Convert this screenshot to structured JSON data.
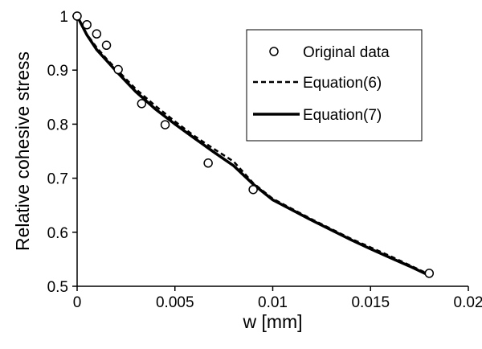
{
  "chart_data": {
    "type": "scatter",
    "xlabel": "w [mm]",
    "ylabel": "Relative cohesive stress",
    "xlim": [
      0,
      0.02
    ],
    "ylim": [
      0.5,
      1
    ],
    "x_ticks": [
      "0",
      "0.005",
      "0.01",
      "0.015",
      "0.02"
    ],
    "y_ticks": [
      "0.5",
      "0.6",
      "0.7",
      "0.8",
      "0.9",
      "1"
    ],
    "legend_position": "top-right",
    "series": [
      {
        "name": "Original data",
        "style": "open-circle-markers",
        "x": [
          0.0,
          0.0005,
          0.001,
          0.0015,
          0.0021,
          0.0033,
          0.0045,
          0.0067,
          0.009,
          0.018
        ],
        "y": [
          1.0,
          0.984,
          0.967,
          0.946,
          0.901,
          0.838,
          0.799,
          0.728,
          0.679,
          0.524
        ]
      },
      {
        "name": "Equation(6)",
        "style": "dashed-line",
        "x": [
          0.0,
          0.0005,
          0.001,
          0.0015,
          0.002,
          0.003,
          0.004,
          0.005,
          0.006,
          0.007,
          0.008,
          0.009,
          0.01,
          0.011,
          0.012,
          0.013,
          0.014,
          0.015,
          0.016,
          0.017,
          0.018
        ],
        "y": [
          1.0,
          0.966,
          0.942,
          0.921,
          0.902,
          0.865,
          0.834,
          0.805,
          0.778,
          0.754,
          0.731,
          0.691,
          0.662,
          0.643,
          0.624,
          0.606,
          0.588,
          0.572,
          0.556,
          0.539,
          0.522
        ]
      },
      {
        "name": "Equation(7)",
        "style": "solid-thick-line",
        "x": [
          0.0,
          0.0005,
          0.001,
          0.0015,
          0.002,
          0.003,
          0.004,
          0.005,
          0.006,
          0.007,
          0.008,
          0.009,
          0.01,
          0.011,
          0.012,
          0.013,
          0.014,
          0.015,
          0.016,
          0.017,
          0.018
        ],
        "y": [
          1.0,
          0.965,
          0.938,
          0.918,
          0.898,
          0.86,
          0.828,
          0.8,
          0.774,
          0.748,
          0.723,
          0.689,
          0.66,
          0.641,
          0.622,
          0.604,
          0.586,
          0.569,
          0.553,
          0.537,
          0.52
        ]
      }
    ]
  }
}
